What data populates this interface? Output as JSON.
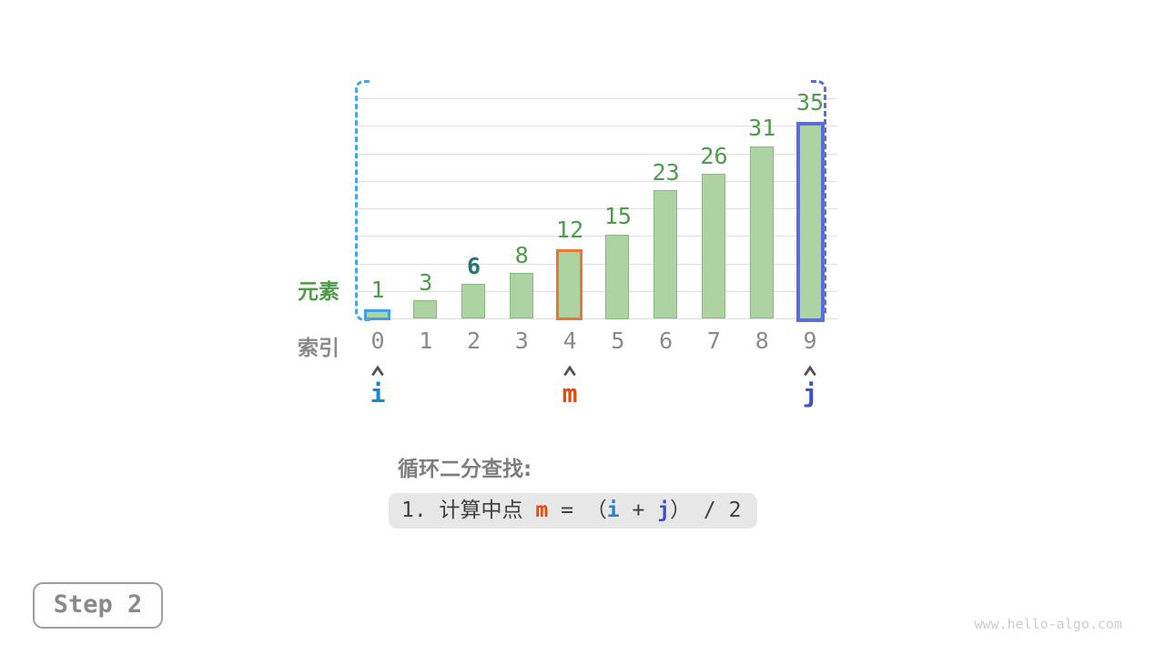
{
  "chart_data": {
    "type": "bar",
    "title": "",
    "categories": [
      "0",
      "1",
      "2",
      "3",
      "4",
      "5",
      "6",
      "7",
      "8",
      "9"
    ],
    "values": [
      1,
      3,
      6,
      8,
      12,
      15,
      23,
      26,
      31,
      35
    ],
    "xlabel": "索引",
    "ylabel": "元素",
    "ylim": [
      0,
      40
    ],
    "gridline_step": 5,
    "grid": true,
    "legend_position": "none",
    "row_labels": {
      "element": "元素",
      "index": "索引"
    },
    "target": {
      "index": 2,
      "value": 6
    },
    "pointers": [
      {
        "name": "i",
        "index": 0,
        "label_color": "#1886d2",
        "bar_border_color": "#3fa0e2"
      },
      {
        "name": "m",
        "index": 4,
        "label_color": "#e7490d",
        "bar_border_color": "#ee7434"
      },
      {
        "name": "j",
        "index": 9,
        "label_color": "#3c50cb",
        "bar_border_color": "#5a6ed6"
      }
    ],
    "colors": {
      "bar_fill": "#aed3a2",
      "bar_border": "#85ba7c",
      "value_label": "#4e9b4a",
      "target_value_label": "#1c7a70",
      "index_label": "#8a8a8a",
      "gridline": "#dfdfdf",
      "bracket_left": "#47a6e8",
      "bracket_right": "#5a6ed6",
      "caret": "#4f4f4f"
    }
  },
  "algorithm": {
    "title": "循环二分查找:",
    "step_box": {
      "prefix": "1. 计算中点 ",
      "var_m": "m",
      "middle": " = （",
      "var_i": "i",
      "plus": " + ",
      "var_j": "j",
      "suffix": "） / 2"
    }
  },
  "footer": {
    "step_label": "Step 2",
    "watermark": "www.hello-algo.com"
  }
}
